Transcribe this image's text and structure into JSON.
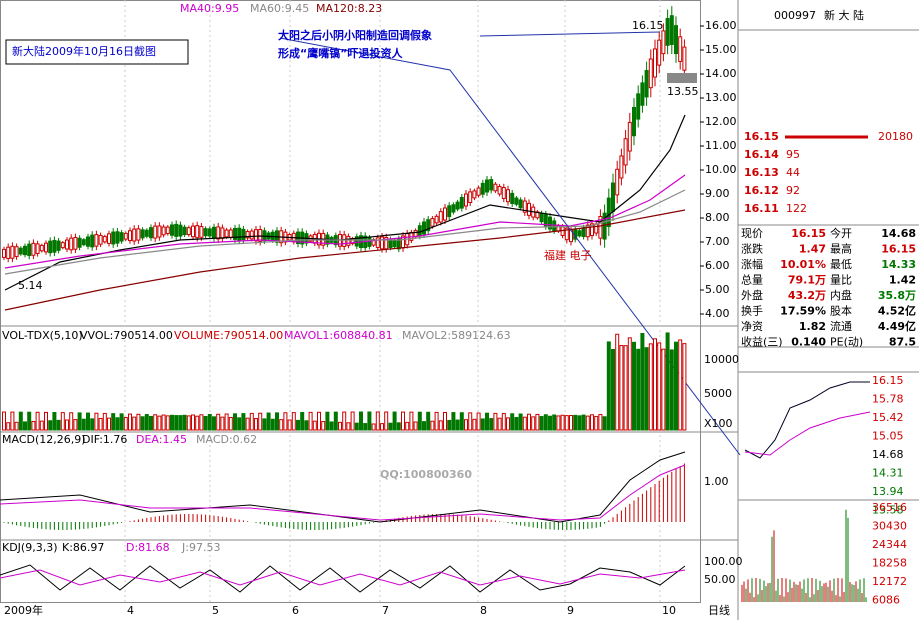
{
  "header": {
    "ma40": "MA40:9.95",
    "ma60": "MA60:9.45",
    "ma120": "MA120:8.23"
  },
  "caption": "新大陆2009年10月16日截图",
  "annotation": [
    "大阳之后小阴小阳制造回调假象",
    "形成“鹰嘴镐”吓退投资人"
  ],
  "price_marks": {
    "high": "16.15",
    "mid": "13.55",
    "low": "5.14"
  },
  "sector": "福建  电子",
  "price_axis": [
    "16.00",
    "15.00",
    "14.00",
    "13.00",
    "12.00",
    "11.00",
    "10.00",
    "9.00",
    "8.00",
    "7.00",
    "6.00",
    "5.00",
    "4.00"
  ],
  "volume_header": [
    "VOL-TDX(5,10)",
    "VVOL:790514.00",
    "VOLUME:790514.00",
    "MAVOL1:608840.81",
    "MAVOL2:589124.63"
  ],
  "volume_axis": [
    "10000",
    "5000",
    "X100"
  ],
  "macd_header": [
    "MACD(12,26,9)",
    "DIF:1.76",
    "DEA:1.45",
    "MACD:0.62"
  ],
  "macd_axis": [
    "1.00"
  ],
  "watermark": "QQ:100800360",
  "kdj_header": [
    "KDJ(9,3,3)",
    "K:86.97",
    "D:81.68",
    "J:97.53"
  ],
  "kdj_axis": [
    "100.00",
    "50.00"
  ],
  "date_axis": [
    "2009年",
    "4",
    "5",
    "6",
    "7",
    "8",
    "9",
    "10"
  ],
  "period": "日线",
  "stock": {
    "code": "000997",
    "name": "新 大 陆"
  },
  "orderbook": [
    [
      "16.15",
      "20180"
    ],
    [
      "16.14",
      "95"
    ],
    [
      "16.13",
      "44"
    ],
    [
      "16.12",
      "92"
    ],
    [
      "16.11",
      "122"
    ]
  ],
  "quote": [
    [
      "现价",
      "16.15",
      "今开",
      "14.68"
    ],
    [
      "涨跌",
      "1.47",
      "最高",
      "16.15"
    ],
    [
      "涨幅",
      "10.01%",
      "最低",
      "14.33"
    ],
    [
      "总量",
      "79.1万",
      "量比",
      "1.42"
    ],
    [
      "外盘",
      "43.2万",
      "内盘",
      "35.8万"
    ],
    [
      "换手",
      "17.59%",
      "股本",
      "4.52亿"
    ],
    [
      "净资",
      "1.82",
      "流通",
      "4.49亿"
    ],
    [
      "收益(三)",
      "0.140",
      "PE(动)",
      "87.5"
    ]
  ],
  "mini_axis": [
    "16.15",
    "15.78",
    "15.42",
    "15.05",
    "14.68",
    "14.31",
    "13.94",
    "13.58"
  ],
  "mini_volume_axis": [
    "36516",
    "30430",
    "24344",
    "18258",
    "12172",
    "6086"
  ]
}
